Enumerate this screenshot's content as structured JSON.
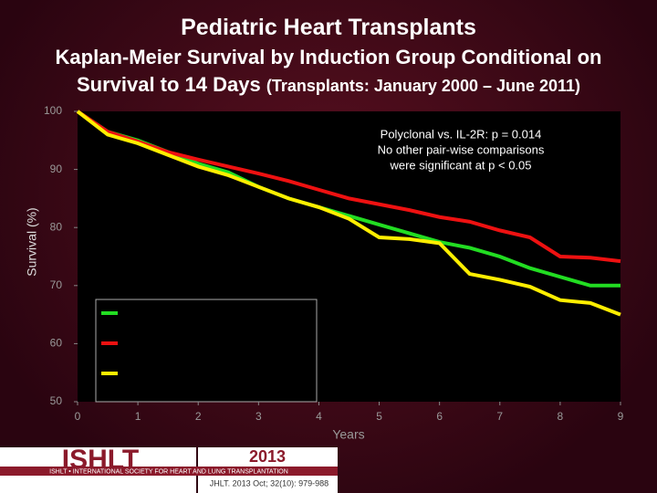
{
  "chart_data": {
    "type": "line",
    "title": "Pediatric Heart Transplants",
    "subtitle_lines": [
      "Kaplan-Meier Survival by Induction Group Conditional on",
      "Survival to 14 Days"
    ],
    "subtitle_note": "(Transplants: January 2000 – June 2011)",
    "annotations": [
      "Polyclonal vs. IL-2R: p = 0.014",
      "No other pair-wise comparisons",
      "were significant at p < 0.05"
    ],
    "x_label": "Years",
    "y_label": "Survival (%)",
    "x": [
      0,
      0.5,
      1,
      1.5,
      2,
      2.5,
      3,
      3.5,
      4,
      4.5,
      5,
      5.5,
      6,
      6.5,
      7,
      7.5,
      8,
      8.5,
      9
    ],
    "series": [
      {
        "color": "#22dd22",
        "values": [
          100,
          96.5,
          95,
          93,
          91,
          89.5,
          87,
          85,
          83.5,
          82,
          80.5,
          79,
          77.5,
          76.5,
          75,
          73,
          71.5,
          70,
          70
        ]
      },
      {
        "color": "#ee1111",
        "values": [
          100,
          96.5,
          94.8,
          93,
          91.7,
          90.5,
          89.3,
          88,
          86.5,
          85,
          84,
          83,
          81.8,
          81,
          79.5,
          78.3,
          75,
          74.8,
          74.2
        ]
      },
      {
        "color": "#ffee00",
        "values": [
          100,
          96,
          94.5,
          92.5,
          90.5,
          89,
          87,
          85,
          83.5,
          81.5,
          78.3,
          78,
          77.3,
          72,
          71,
          69.8,
          67.5,
          67,
          65
        ]
      }
    ],
    "xlim": [
      0,
      9
    ],
    "xticks": [
      0,
      1,
      2,
      3,
      4,
      5,
      6,
      7,
      8,
      9
    ],
    "ylim": [
      50,
      100
    ],
    "yticks": [
      50,
      60,
      70,
      80,
      90,
      100
    ],
    "grid": false
  },
  "footer": {
    "logo": "ISHLT",
    "society": "ISHLT • INTERNATIONAL SOCIETY FOR HEART AND LUNG TRANSPLANTATION",
    "year": "2013",
    "citation": "JHLT. 2013 Oct; 32(10): 979-988"
  }
}
